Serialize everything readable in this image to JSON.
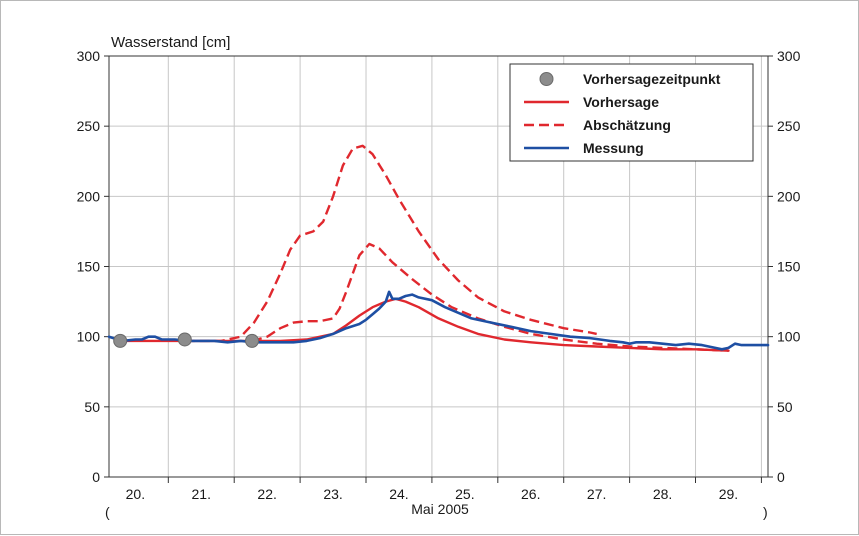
{
  "chart_data": {
    "type": "line",
    "ylabel": "Wasserstand [cm]",
    "xlabel": "Mai 2005",
    "xlabel_open": "(",
    "xlabel_close": ")",
    "ylim": [
      0,
      300
    ],
    "yticks": [
      0,
      50,
      100,
      150,
      200,
      250,
      300
    ],
    "xlim": [
      19.6,
      29.6
    ],
    "xticks": [
      20,
      21,
      22,
      23,
      24,
      25,
      26,
      27,
      28,
      29
    ],
    "xtick_labels": [
      "20.",
      "21.",
      "22.",
      "23.",
      "24.",
      "25.",
      "26.",
      "27.",
      "28.",
      "29."
    ],
    "grid": true,
    "legend_position": "top-right",
    "legend": [
      {
        "label": "Vorhersagezeitpunkt",
        "style": "marker",
        "color": "#8c8c8c"
      },
      {
        "label": "Vorhersage",
        "style": "solid",
        "color": "#e0282e"
      },
      {
        "label": "Abschätzung",
        "style": "dashed",
        "color": "#e0282e"
      },
      {
        "label": "Messung",
        "style": "solid",
        "color": "#1e4fa3"
      }
    ],
    "forecast_points": [
      {
        "x": 19.77,
        "y": 97
      },
      {
        "x": 20.75,
        "y": 98
      },
      {
        "x": 21.77,
        "y": 97
      }
    ],
    "series": [
      {
        "name": "Messung",
        "color": "#1e4fa3",
        "style": "solid",
        "points": [
          [
            19.6,
            100
          ],
          [
            19.8,
            97
          ],
          [
            20.0,
            98
          ],
          [
            20.1,
            98
          ],
          [
            20.2,
            100
          ],
          [
            20.3,
            100
          ],
          [
            20.4,
            98
          ],
          [
            20.6,
            98
          ],
          [
            20.8,
            97
          ],
          [
            21.0,
            97
          ],
          [
            21.2,
            97
          ],
          [
            21.4,
            96
          ],
          [
            21.6,
            97
          ],
          [
            21.8,
            96
          ],
          [
            22.0,
            96
          ],
          [
            22.2,
            96
          ],
          [
            22.4,
            96
          ],
          [
            22.6,
            97
          ],
          [
            22.8,
            99
          ],
          [
            23.0,
            102
          ],
          [
            23.2,
            106
          ],
          [
            23.4,
            109
          ],
          [
            23.5,
            112
          ],
          [
            23.6,
            116
          ],
          [
            23.7,
            120
          ],
          [
            23.8,
            125
          ],
          [
            23.85,
            132
          ],
          [
            23.9,
            127
          ],
          [
            24.0,
            127
          ],
          [
            24.1,
            129
          ],
          [
            24.2,
            130
          ],
          [
            24.3,
            128
          ],
          [
            24.5,
            126
          ],
          [
            24.7,
            121
          ],
          [
            24.9,
            117
          ],
          [
            25.1,
            113
          ],
          [
            25.4,
            110
          ],
          [
            25.7,
            107
          ],
          [
            26.0,
            104
          ],
          [
            26.3,
            102
          ],
          [
            26.6,
            100
          ],
          [
            26.9,
            99
          ],
          [
            27.2,
            97
          ],
          [
            27.4,
            96
          ],
          [
            27.5,
            95
          ],
          [
            27.6,
            96
          ],
          [
            27.8,
            96
          ],
          [
            28.0,
            95
          ],
          [
            28.2,
            94
          ],
          [
            28.4,
            95
          ],
          [
            28.6,
            94
          ],
          [
            28.8,
            92
          ],
          [
            28.9,
            91
          ],
          [
            29.0,
            92
          ],
          [
            29.1,
            95
          ],
          [
            29.2,
            94
          ],
          [
            29.4,
            94
          ],
          [
            29.6,
            94
          ]
        ]
      },
      {
        "name": "Vorhersage",
        "color": "#e0282e",
        "style": "solid",
        "points": [
          [
            19.77,
            97
          ],
          [
            20.2,
            97
          ],
          [
            20.75,
            97
          ],
          [
            21.2,
            97
          ],
          [
            21.8,
            97
          ],
          [
            22.2,
            97
          ],
          [
            22.6,
            98
          ],
          [
            23.0,
            102
          ],
          [
            23.2,
            108
          ],
          [
            23.4,
            115
          ],
          [
            23.6,
            121
          ],
          [
            23.8,
            125
          ],
          [
            23.95,
            127
          ],
          [
            24.1,
            125
          ],
          [
            24.3,
            121
          ],
          [
            24.6,
            113
          ],
          [
            24.9,
            107
          ],
          [
            25.2,
            102
          ],
          [
            25.6,
            98
          ],
          [
            26.0,
            96
          ],
          [
            26.5,
            94
          ],
          [
            27.0,
            93
          ],
          [
            27.5,
            92
          ],
          [
            28.0,
            91
          ],
          [
            28.5,
            91
          ],
          [
            29.0,
            90
          ]
        ]
      },
      {
        "name": "Abschätzung",
        "color": "#e0282e",
        "style": "dashed",
        "points": [
          [
            21.77,
            97
          ],
          [
            22.0,
            100
          ],
          [
            22.2,
            106
          ],
          [
            22.4,
            110
          ],
          [
            22.6,
            111
          ],
          [
            22.8,
            111
          ],
          [
            23.0,
            113
          ],
          [
            23.1,
            120
          ],
          [
            23.2,
            132
          ],
          [
            23.3,
            145
          ],
          [
            23.4,
            158
          ],
          [
            23.55,
            166
          ],
          [
            23.7,
            163
          ],
          [
            23.9,
            153
          ],
          [
            24.2,
            141
          ],
          [
            24.5,
            130
          ],
          [
            24.8,
            121
          ],
          [
            25.2,
            113
          ],
          [
            25.6,
            107
          ],
          [
            26.0,
            102
          ],
          [
            26.5,
            98
          ],
          [
            27.0,
            95
          ],
          [
            27.5,
            93
          ],
          [
            28.0,
            92
          ],
          [
            28.5,
            91
          ],
          [
            29.0,
            90
          ]
        ]
      },
      {
        "name": "Abschätzung",
        "color": "#e0282e",
        "style": "dashed",
        "points": [
          [
            20.75,
            97
          ],
          [
            21.0,
            97
          ],
          [
            21.3,
            97
          ],
          [
            21.6,
            100
          ],
          [
            21.8,
            110
          ],
          [
            22.0,
            125
          ],
          [
            22.2,
            145
          ],
          [
            22.35,
            162
          ],
          [
            22.5,
            172
          ],
          [
            22.7,
            175
          ],
          [
            22.85,
            182
          ],
          [
            23.0,
            200
          ],
          [
            23.15,
            222
          ],
          [
            23.3,
            234
          ],
          [
            23.45,
            236
          ],
          [
            23.6,
            230
          ],
          [
            23.8,
            215
          ],
          [
            24.0,
            198
          ],
          [
            24.3,
            175
          ],
          [
            24.6,
            155
          ],
          [
            24.9,
            140
          ],
          [
            25.2,
            128
          ],
          [
            25.6,
            118
          ],
          [
            26.0,
            112
          ],
          [
            26.5,
            106
          ],
          [
            26.9,
            103
          ],
          [
            27.0,
            102
          ]
        ]
      }
    ]
  }
}
